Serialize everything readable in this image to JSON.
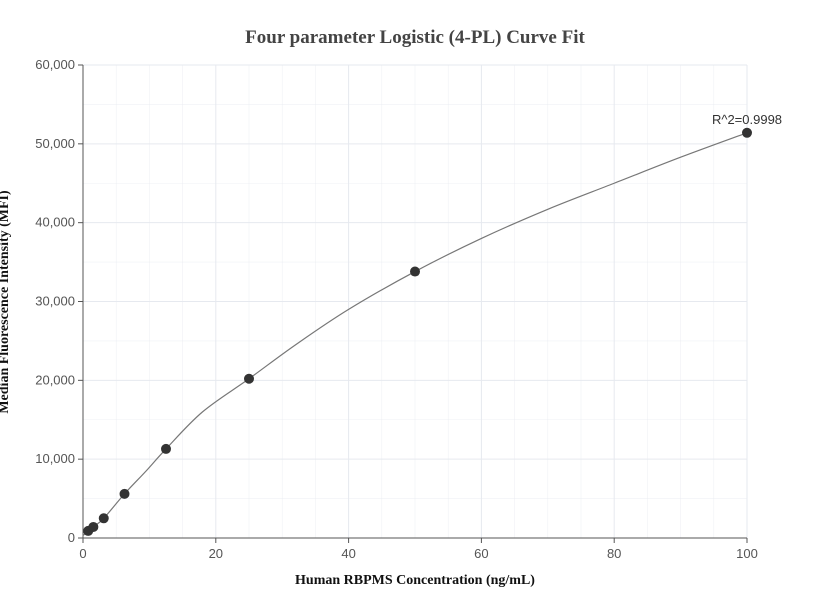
{
  "chart_data": {
    "type": "scatter",
    "title": "Four parameter Logistic (4-PL) Curve Fit",
    "xlabel": "Human RBPMS Concentration (ng/mL)",
    "ylabel": "Median Fluorescence Intensity (MFI)",
    "xlim": [
      0,
      100
    ],
    "ylim": [
      0,
      60000
    ],
    "x_ticks": [
      0,
      20,
      40,
      60,
      80,
      100
    ],
    "x_tick_labels": [
      "0",
      "20",
      "40",
      "60",
      "80",
      "100"
    ],
    "y_ticks": [
      0,
      10000,
      20000,
      30000,
      40000,
      50000,
      60000
    ],
    "y_tick_labels": [
      "0",
      "10,000",
      "20,000",
      "30,000",
      "40,000",
      "50,000",
      "60,000"
    ],
    "grid": true,
    "points": {
      "x": [
        0.78,
        1.56,
        3.125,
        6.25,
        12.5,
        25,
        50,
        100
      ],
      "y": [
        900,
        1400,
        2500,
        5600,
        11300,
        20200,
        33800,
        51400
      ]
    },
    "fit_curve": {
      "x": [
        0,
        0.78,
        1.56,
        3.125,
        6.25,
        9.5,
        12.5,
        18,
        25,
        32,
        40,
        50,
        60,
        70,
        80,
        90,
        100
      ],
      "y": [
        300,
        900,
        1400,
        2500,
        5600,
        8500,
        11300,
        16000,
        20200,
        24500,
        29000,
        33800,
        38000,
        41700,
        45000,
        48300,
        51400
      ]
    },
    "annotation": {
      "text": "R^2=0.9998",
      "x": 100,
      "y": 51400
    },
    "colors": {
      "point": "#333333",
      "curve": "#777777",
      "grid": "#e6e9ef",
      "axis": "#555555"
    }
  }
}
